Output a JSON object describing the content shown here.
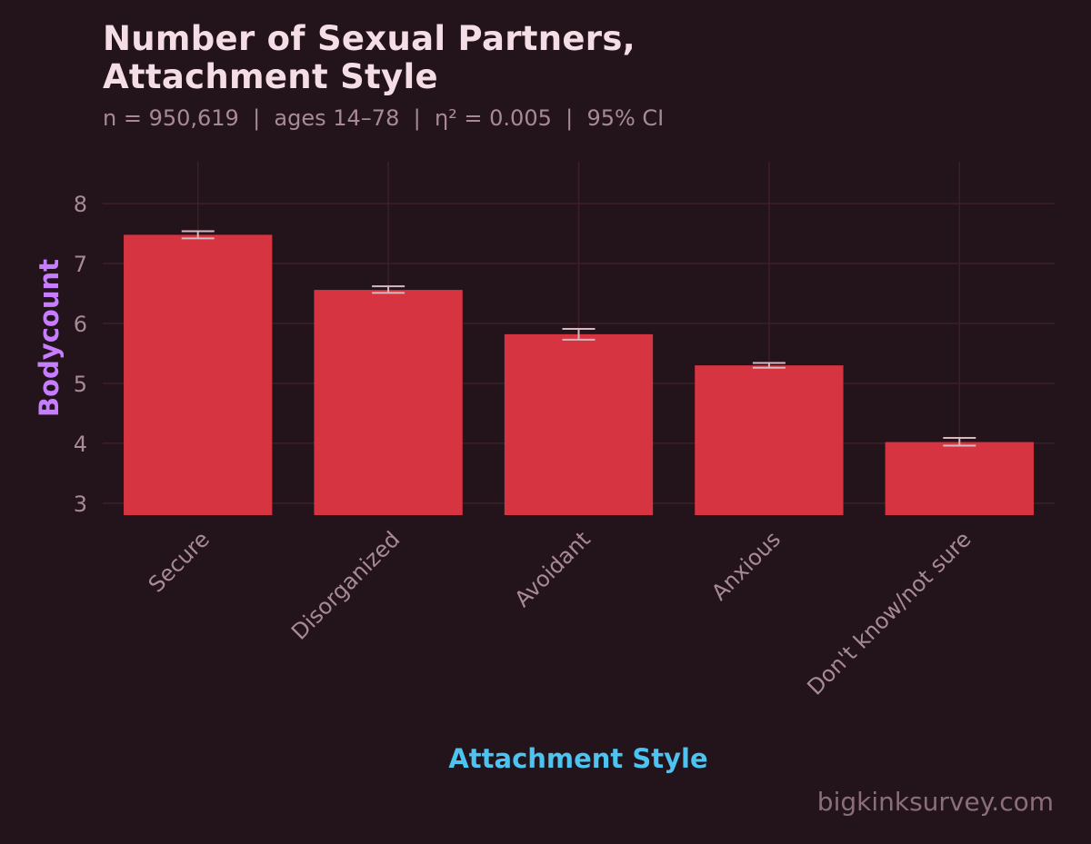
{
  "chart_data": {
    "type": "bar",
    "title_lines": [
      "Number of Sexual Partners,",
      "Attachment Style"
    ],
    "subtitle": "n = 950,619  |  ages 14–78  |  η² = 0.005  |  95% CI",
    "categories": [
      "Secure",
      "Disorganized",
      "Avoidant",
      "Anxious",
      "Don't know/not sure"
    ],
    "values": [
      7.48,
      6.56,
      5.82,
      5.3,
      4.02
    ],
    "ci_low": [
      7.42,
      6.51,
      5.73,
      5.26,
      3.96
    ],
    "ci_high": [
      7.54,
      6.62,
      5.91,
      5.34,
      4.09
    ],
    "xlabel": "Attachment Style",
    "ylabel": "Bodycount",
    "ylim": [
      2.8,
      8.7
    ],
    "yticks": [
      3,
      4,
      5,
      6,
      7,
      8
    ],
    "ytick_labels": [
      "3",
      "4",
      "5",
      "6",
      "7",
      "8"
    ],
    "grid": true,
    "bar_color": "#d63441",
    "errorbar_color": "#d9b7bf",
    "grid_color": "#3d1f2a",
    "ylabel_color": "#c77dff",
    "xlabel_color": "#4cc3f0"
  },
  "watermark": "bigkinksurvey.com"
}
